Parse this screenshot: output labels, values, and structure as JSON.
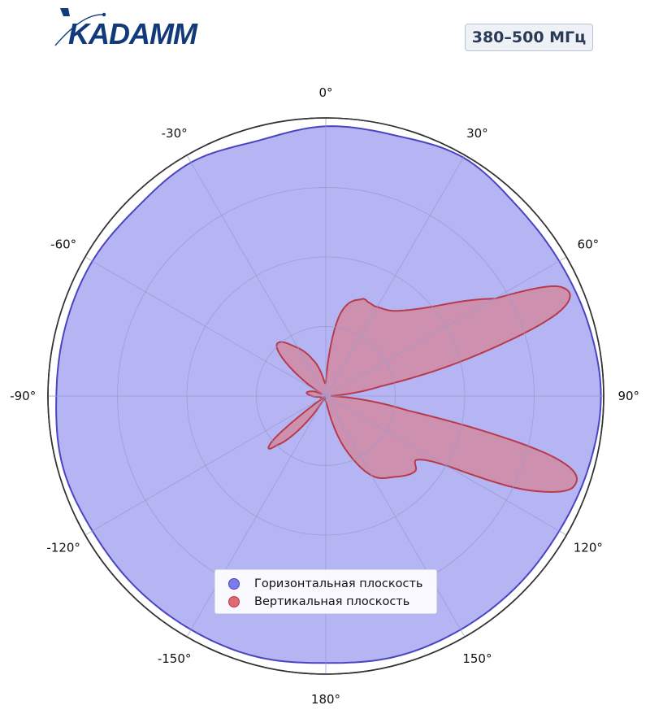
{
  "header": {
    "brand": "KADAMM",
    "badge": "380–500 МГц"
  },
  "colors": {
    "brand_navy": "#123a7a",
    "horizontal_fill": "#b5b5f4",
    "horizontal_line": "#4b44c0",
    "vertical_fill": "#cf8ea8",
    "vertical_line": "#b83a4b",
    "grid": "#9a9ad0",
    "outer_ring": "#333333"
  },
  "chart_data": {
    "type": "polar",
    "theta_zero": "top",
    "theta_direction": "clockwise",
    "rlim": [
      0,
      1
    ],
    "rings": [
      0.25,
      0.5,
      0.75,
      1.0
    ],
    "grid": true,
    "legend_position": "lower-center",
    "angle_ticks": [
      "0°",
      "30°",
      "60°",
      "90°",
      "120°",
      "150°",
      "180°",
      "-150°",
      "-120°",
      "-90°",
      "-60°",
      "-30°"
    ],
    "series": [
      {
        "name": "Горизонтальная плоскость",
        "angles": [
          0,
          15,
          30,
          45,
          60,
          75,
          90,
          105,
          120,
          135,
          150,
          165,
          180,
          -165,
          -150,
          -135,
          -120,
          -105,
          -90,
          -75,
          -60,
          -45,
          -30,
          -15
        ],
        "values": [
          0.97,
          0.97,
          0.99,
          0.97,
          0.97,
          0.98,
          0.99,
          0.98,
          0.97,
          0.97,
          0.97,
          0.97,
          0.96,
          0.97,
          0.97,
          0.97,
          0.97,
          0.98,
          0.97,
          0.97,
          0.97,
          0.96,
          0.97,
          0.95
        ]
      },
      {
        "name": "Вертикальная плоскость",
        "angles": [
          0,
          10,
          20,
          25,
          30,
          40,
          50,
          60,
          65,
          70,
          75,
          80,
          90,
          100,
          105,
          110,
          115,
          120,
          125,
          130,
          140,
          150,
          160,
          170,
          180,
          -150,
          -135,
          -130,
          -125,
          -120,
          -100,
          -90,
          -80,
          -70,
          -60,
          -45,
          -30,
          -20
        ],
        "values": [
          0.05,
          0.3,
          0.37,
          0.37,
          0.37,
          0.4,
          0.5,
          0.7,
          0.93,
          0.9,
          0.55,
          0.2,
          0.02,
          0.3,
          0.85,
          0.95,
          0.8,
          0.5,
          0.4,
          0.42,
          0.38,
          0.33,
          0.2,
          0.05,
          0.02,
          0.02,
          0.25,
          0.25,
          0.02,
          0.02,
          0.02,
          0.05,
          0.07,
          0.05,
          0.03,
          0.25,
          0.2,
          0.14
        ]
      }
    ]
  }
}
